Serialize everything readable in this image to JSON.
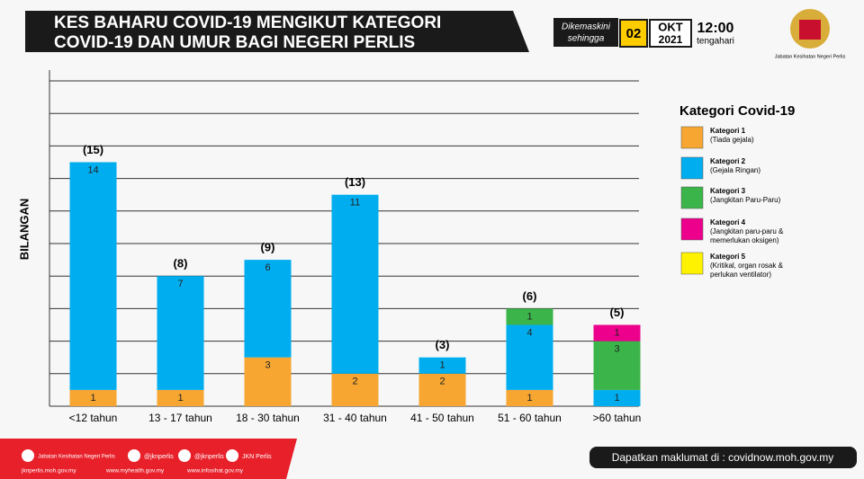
{
  "header": {
    "title_lines": [
      "KES BAHARU COVID-19 MENGIKUT KATEGORI",
      "COVID-19 DAN UMUR BAGI NEGERI PERLIS"
    ],
    "update_label": [
      "Dikemaskini",
      "sehingga"
    ],
    "day": "02",
    "month": "OKT",
    "year": "2021",
    "time": "12:00",
    "time_note": "tengahari",
    "logo_text": "Jabatan Kesihatan Negeri Perlis"
  },
  "footer": {
    "social": [
      "Jabatan Kesihatan Negeri Perlis",
      "@jknperlis",
      "@jknperlis",
      "JKN Perlis"
    ],
    "links": [
      "jknperlis.moh.gov.my",
      "www.myhealth.gov.my",
      "www.infosihat.gov.my"
    ],
    "info": "Dapatkan maklumat di : covidnow.moh.gov.my"
  },
  "chart_data": {
    "type": "bar",
    "stacked": true,
    "y_label": "BILANGAN",
    "legend_title": "Kategori Covid-19",
    "categories": [
      "<12 tahun",
      "13 - 17 tahun",
      "18 - 30 tahun",
      "31 - 40 tahun",
      "41 - 50 tahun",
      "51 - 60 tahun",
      ">60 tahun"
    ],
    "total_labels": [
      "(15)",
      "(8)",
      "(9)",
      "(13)",
      "(3)",
      "(6)",
      "(5)"
    ],
    "series": [
      {
        "name": "Kategori 1",
        "description": [
          "(Tiada gejala)"
        ],
        "color": "#f6a631",
        "values": [
          1,
          1,
          3,
          2,
          2,
          1,
          null
        ]
      },
      {
        "name": "Kategori 2",
        "description": [
          "(Gejala Ringan)"
        ],
        "color": "#00aeef",
        "values": [
          14,
          7,
          6,
          11,
          1,
          4,
          1
        ]
      },
      {
        "name": "Kategori 3",
        "description": [
          "(Jangkitan Paru-Paru)"
        ],
        "color": "#3bb54a",
        "values": [
          null,
          null,
          null,
          null,
          null,
          1,
          3
        ]
      },
      {
        "name": "Kategori 4",
        "description": [
          "(Jangkitan paru-paru &",
          "memerlukan oksigen)"
        ],
        "color": "#ec008c",
        "values": [
          null,
          null,
          null,
          null,
          null,
          null,
          1
        ]
      },
      {
        "name": "Kategori 5",
        "description": [
          "(Kritikal, organ rosak &",
          "perlukan ventilator)"
        ],
        "color": "#fff200",
        "values": [
          null,
          null,
          null,
          null,
          null,
          null,
          null
        ]
      }
    ],
    "ylim": [
      0,
      20
    ],
    "yticks": [
      0,
      2,
      4,
      6,
      8,
      10,
      12,
      14,
      16,
      18,
      20
    ],
    "grid": true
  }
}
